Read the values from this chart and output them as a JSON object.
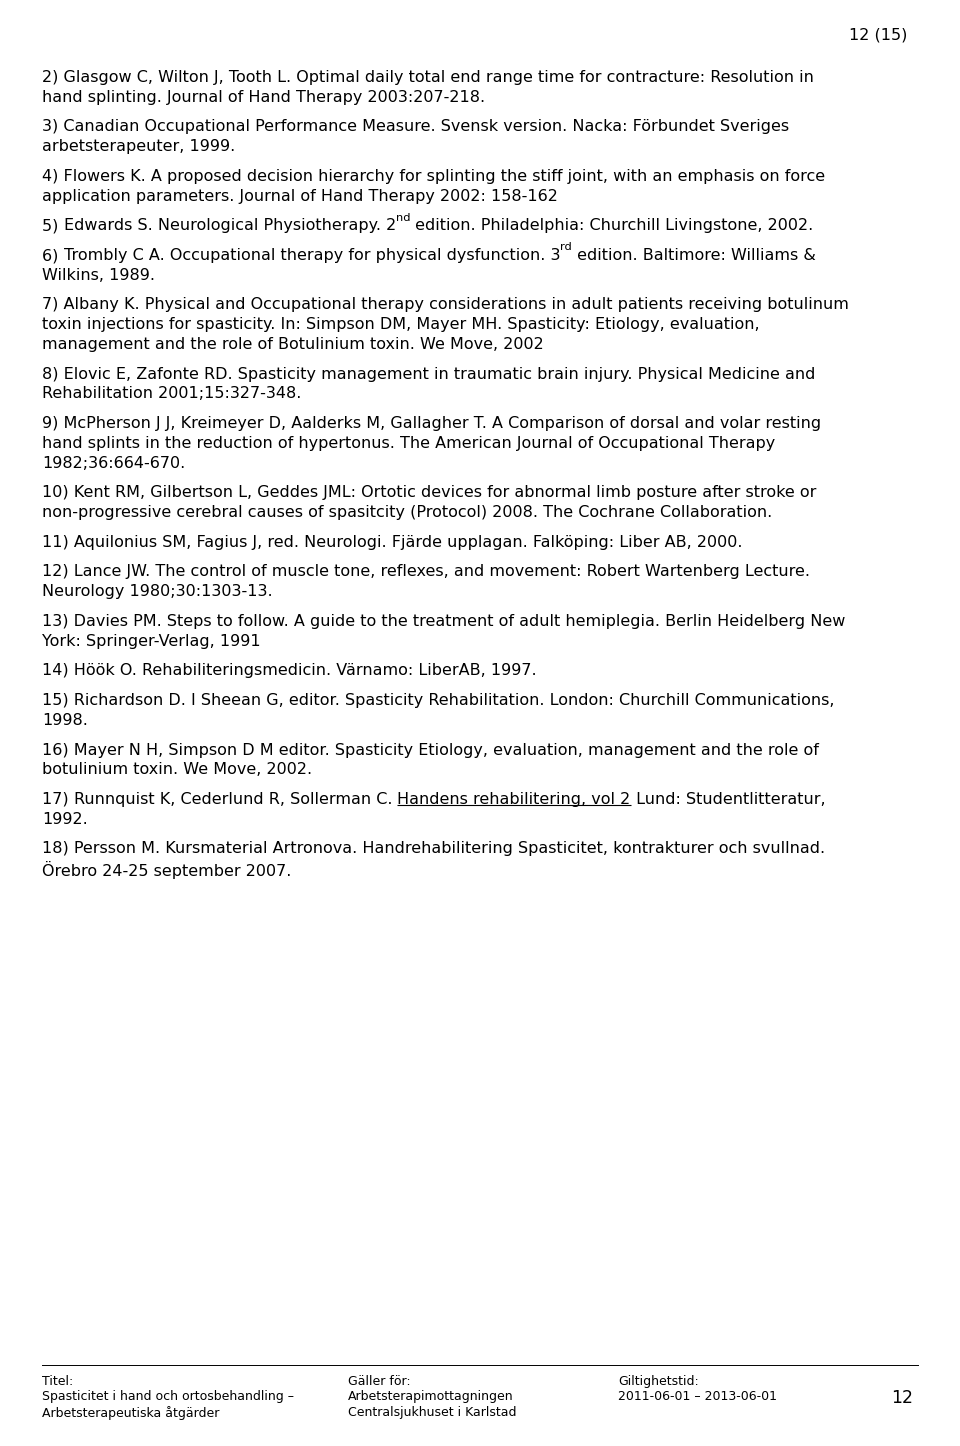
{
  "page_number": "12 (15)",
  "background_color": "#ffffff",
  "text_color": "#000000",
  "font_size": 11.5,
  "footer_font_size": 9.0,
  "paragraphs": [
    {
      "number": "2)",
      "text": "Glasgow C, Wilton J, Tooth L. Optimal daily total end range time for contracture: Resolution in\nhand splinting. Journal of Hand Therapy 2003:207-218."
    },
    {
      "number": "3)",
      "text": "Canadian Occupational Performance Measure. Svensk version. Nacka: Förbundet Sveriges\narbetsterapeuter, 1999."
    },
    {
      "number": "4)",
      "text": "Flowers K. A proposed decision hierarchy for splinting the stiff joint, with an emphasis on force\napplication parameters. Journal of Hand Therapy 2002: 158-162"
    },
    {
      "number": "5)",
      "text_parts": [
        {
          "text": "Edwards S. Neurological Physiotherapy. 2",
          "superscript": false,
          "underline": false
        },
        {
          "text": "nd",
          "superscript": true,
          "underline": false
        },
        {
          "text": " edition. Philadelphia: Churchill Livingstone, 2002.",
          "superscript": false,
          "underline": false
        }
      ]
    },
    {
      "number": "6)",
      "text_parts": [
        {
          "text": "Trombly C A. Occupational therapy for physical dysfunction. 3",
          "superscript": false,
          "underline": false
        },
        {
          "text": "rd",
          "superscript": true,
          "underline": false
        },
        {
          "text": " edition. Baltimore: Williams &\nWilkins, 1989.",
          "superscript": false,
          "underline": false
        }
      ]
    },
    {
      "number": "7)",
      "text": "Albany K. Physical and Occupational therapy considerations in adult patients receiving botulinum\ntoxin injections for spasticity. In: Simpson DM, Mayer MH. Spasticity: Etiology, evaluation,\nmanagement and the role of Botulinium toxin. We Move, 2002"
    },
    {
      "number": "8)",
      "text": "Elovic E, Zafonte RD. Spasticity management in traumatic brain injury. Physical Medicine and\nRehabilitation 2001;15:327-348."
    },
    {
      "number": "9)",
      "text": "McPherson J J, Kreimeyer D, Aalderks M, Gallagher T. A Comparison of dorsal and volar resting\nhand splints in the reduction of hypertonus. The American Journal of Occupational Therapy\n1982;36:664-670."
    },
    {
      "number": "10)",
      "text": "Kent RM, Gilbertson L, Geddes JML: Ortotic devices for abnormal limb posture after stroke or\nnon-progressive cerebral causes of spasitcity (Protocol) 2008. The Cochrane Collaboration."
    },
    {
      "number": "11)",
      "text": "Aquilonius SM, Fagius J, red. Neurologi. Fjärde upplagan. Falköping: Liber AB, 2000."
    },
    {
      "number": "12)",
      "text": "Lance JW. The control of muscle tone, reflexes, and movement: Robert Wartenberg Lecture.\nNeurology 1980;30:1303-13."
    },
    {
      "number": "13)",
      "text": "Davies PM. Steps to follow. A guide to the treatment of adult hemiplegia. Berlin Heidelberg New\nYork: Springer-Verlag, 1991"
    },
    {
      "number": "14)",
      "text": "Höök O. Rehabiliteringsmedicin. Värnamo: LiberAB, 1997."
    },
    {
      "number": "15)",
      "text": "Richardson D. I Sheean G, editor. Spasticity Rehabilitation. London: Churchill Communications,\n1998."
    },
    {
      "number": "16)",
      "text": "Mayer N H, Simpson D M editor. Spasticity Etiology, evaluation, management and the role of\nbotulinium toxin. We Move, 2002."
    },
    {
      "number": "17)",
      "text_parts": [
        {
          "text": "Runnquist K, Cederlund R, Sollerman C. ",
          "superscript": false,
          "underline": false
        },
        {
          "text": "Handens rehabilitering, vol 2",
          "superscript": false,
          "underline": true
        },
        {
          "text": " Lund: Studentlitteratur,\n1992.",
          "superscript": false,
          "underline": false
        }
      ]
    },
    {
      "number": "18)",
      "text": "Persson M. Kursmaterial Artronova. Handrehabilitering Spasticitet, kontrakturer och svullnad.\nÖrebro 24-25 september 2007."
    }
  ],
  "footer": {
    "col1_label": "Titel:",
    "col1_line1": "Spasticitet i hand och ortosbehandling –",
    "col1_line2": "Arbetsterapeutiska åtgärder",
    "col2_label": "Gäller för:",
    "col2_line1": "Arbetsterapimottagningen",
    "col2_line2": "Centralsjukhuset i Karlstad",
    "col3_label": "Giltighetstid:",
    "col3_line1": "2011-06-01 – 2013-06-01",
    "page_num": "12"
  }
}
